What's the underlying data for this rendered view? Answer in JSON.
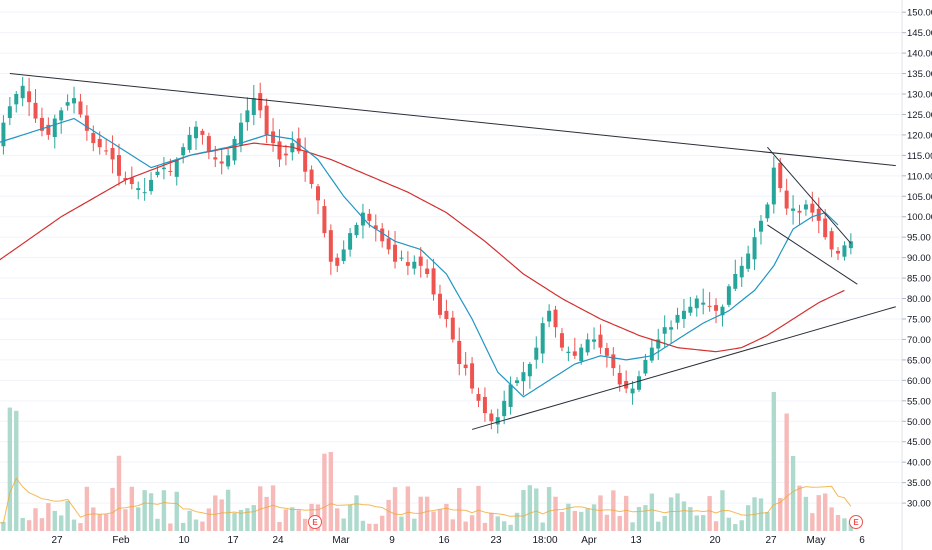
{
  "chart_data": {
    "type": "candlestick",
    "title": "",
    "xlabel": "",
    "ylabel": "",
    "ylim": [
      20,
      152
    ],
    "y_ticks": [
      "150.00",
      "145.00",
      "140.00",
      "135.00",
      "130.00",
      "125.00",
      "120.00",
      "115.00",
      "110.00",
      "105.00",
      "100.00",
      "95.00",
      "90.00",
      "85.00",
      "80.00",
      "75.00",
      "70.00",
      "65.00",
      "60.00",
      "55.00",
      "50.00",
      "45.00",
      "40.00",
      "35.00",
      "30.00"
    ],
    "x_ticks": [
      "27",
      "Feb",
      "10",
      "17",
      "24",
      "Mar",
      "9",
      "16",
      "23",
      "18:00",
      "Apr",
      "13",
      "20",
      "27",
      "May",
      "6"
    ],
    "earnings_marker": "E",
    "colors": {
      "up": "#26a69a",
      "down": "#ef5350",
      "ma_fast": "#2196c3",
      "ma_slow": "#d32f2f",
      "trendline": "#2a2e39",
      "vol_ma": "#f0a830"
    },
    "price_path": [
      [
        0,
        118
      ],
      [
        1,
        123
      ],
      [
        2,
        127
      ],
      [
        3,
        130
      ],
      [
        4,
        132
      ],
      [
        5,
        128
      ],
      [
        6,
        124
      ],
      [
        7,
        121
      ],
      [
        8,
        120
      ],
      [
        9,
        124
      ],
      [
        10,
        126
      ],
      [
        11,
        128
      ],
      [
        12,
        129
      ],
      [
        13,
        125
      ],
      [
        14,
        121
      ],
      [
        15,
        118
      ],
      [
        16,
        117
      ],
      [
        17,
        116
      ],
      [
        18,
        114
      ],
      [
        19,
        110
      ],
      [
        20,
        109
      ],
      [
        21,
        108
      ],
      [
        22,
        107
      ],
      [
        23,
        106
      ],
      [
        24,
        109
      ],
      [
        25,
        111
      ],
      [
        26,
        112
      ],
      [
        27,
        111
      ],
      [
        28,
        114
      ],
      [
        29,
        117
      ],
      [
        30,
        120
      ],
      [
        31,
        122
      ],
      [
        32,
        120
      ],
      [
        33,
        116
      ],
      [
        34,
        114
      ],
      [
        35,
        113
      ],
      [
        36,
        115
      ],
      [
        37,
        119
      ],
      [
        38,
        123
      ],
      [
        39,
        126
      ],
      [
        40,
        129
      ],
      [
        41,
        126
      ],
      [
        42,
        120
      ],
      [
        43,
        118
      ],
      [
        44,
        114
      ],
      [
        45,
        115
      ],
      [
        46,
        118
      ],
      [
        47,
        116
      ],
      [
        48,
        111
      ],
      [
        49,
        108
      ],
      [
        50,
        104
      ],
      [
        51,
        96
      ],
      [
        52,
        89
      ],
      [
        53,
        88
      ],
      [
        54,
        92
      ],
      [
        55,
        96
      ],
      [
        56,
        98
      ],
      [
        57,
        101
      ],
      [
        58,
        99
      ],
      [
        59,
        97
      ],
      [
        60,
        94
      ],
      [
        61,
        92
      ],
      [
        62,
        89
      ],
      [
        63,
        90
      ],
      [
        64,
        88
      ],
      [
        65,
        89
      ],
      [
        66,
        88
      ],
      [
        67,
        86
      ],
      [
        68,
        81
      ],
      [
        69,
        76
      ],
      [
        70,
        75
      ],
      [
        71,
        70
      ],
      [
        72,
        64
      ],
      [
        73,
        63
      ],
      [
        74,
        58
      ],
      [
        75,
        55
      ],
      [
        76,
        52
      ],
      [
        77,
        50
      ],
      [
        78,
        51
      ],
      [
        79,
        55
      ],
      [
        80,
        59
      ],
      [
        81,
        60
      ],
      [
        82,
        62
      ],
      [
        83,
        64
      ],
      [
        84,
        68
      ],
      [
        85,
        74
      ],
      [
        86,
        77
      ],
      [
        87,
        73
      ],
      [
        88,
        68
      ],
      [
        89,
        67
      ],
      [
        90,
        66
      ],
      [
        91,
        68
      ],
      [
        92,
        70
      ],
      [
        93,
        70
      ],
      [
        94,
        68
      ],
      [
        95,
        66
      ],
      [
        96,
        63
      ],
      [
        97,
        59
      ],
      [
        98,
        58
      ],
      [
        99,
        58
      ],
      [
        100,
        61
      ],
      [
        101,
        65
      ],
      [
        102,
        68
      ],
      [
        103,
        70
      ],
      [
        104,
        73
      ],
      [
        105,
        73
      ],
      [
        106,
        76
      ],
      [
        107,
        77
      ],
      [
        108,
        78
      ],
      [
        109,
        80
      ],
      [
        110,
        79
      ],
      [
        111,
        78
      ],
      [
        112,
        77
      ],
      [
        113,
        78
      ],
      [
        114,
        83
      ],
      [
        115,
        86
      ],
      [
        116,
        88
      ],
      [
        117,
        91
      ],
      [
        118,
        95
      ],
      [
        119,
        99
      ],
      [
        120,
        103
      ],
      [
        121,
        112
      ],
      [
        122,
        107
      ],
      [
        123,
        102
      ],
      [
        124,
        102
      ],
      [
        125,
        101
      ],
      [
        126,
        103
      ],
      [
        127,
        101
      ],
      [
        128,
        99
      ],
      [
        129,
        95
      ],
      [
        130,
        92
      ],
      [
        131,
        91
      ],
      [
        132,
        93
      ],
      [
        133,
        94
      ]
    ],
    "ma_fast": [
      [
        0,
        118
      ],
      [
        6,
        121
      ],
      [
        12,
        124
      ],
      [
        18,
        118
      ],
      [
        24,
        112
      ],
      [
        30,
        115
      ],
      [
        36,
        117
      ],
      [
        42,
        120
      ],
      [
        46,
        119
      ],
      [
        50,
        114
      ],
      [
        54,
        105
      ],
      [
        58,
        98
      ],
      [
        62,
        94
      ],
      [
        66,
        92
      ],
      [
        70,
        86
      ],
      [
        74,
        75
      ],
      [
        78,
        62
      ],
      [
        82,
        56
      ],
      [
        86,
        60
      ],
      [
        90,
        64
      ],
      [
        94,
        66
      ],
      [
        98,
        65
      ],
      [
        102,
        66
      ],
      [
        106,
        70
      ],
      [
        110,
        74
      ],
      [
        114,
        77
      ],
      [
        118,
        82
      ],
      [
        121,
        88
      ],
      [
        124,
        97
      ],
      [
        127,
        100
      ],
      [
        129,
        101
      ],
      [
        131,
        98
      ]
    ],
    "ma_slow": [
      [
        0,
        89
      ],
      [
        10,
        100
      ],
      [
        20,
        109
      ],
      [
        30,
        115
      ],
      [
        40,
        118
      ],
      [
        46,
        117
      ],
      [
        52,
        114
      ],
      [
        58,
        110
      ],
      [
        64,
        106
      ],
      [
        70,
        101
      ],
      [
        76,
        94
      ],
      [
        82,
        86
      ],
      [
        88,
        80
      ],
      [
        94,
        75
      ],
      [
        100,
        71
      ],
      [
        106,
        68
      ],
      [
        112,
        67
      ],
      [
        116,
        68
      ],
      [
        120,
        71
      ],
      [
        124,
        75
      ],
      [
        128,
        79
      ],
      [
        132,
        82
      ]
    ],
    "trendlines": [
      {
        "from": [
          2,
          135
        ],
        "to": [
          140,
          112.5
        ]
      },
      {
        "from": [
          74,
          48
        ],
        "to": [
          140,
          78
        ]
      },
      {
        "from": [
          120,
          117
        ],
        "to": [
          133,
          93.5
        ]
      },
      {
        "from": [
          120,
          98
        ],
        "to": [
          134,
          83.5
        ]
      }
    ],
    "volume_count": 134
  }
}
